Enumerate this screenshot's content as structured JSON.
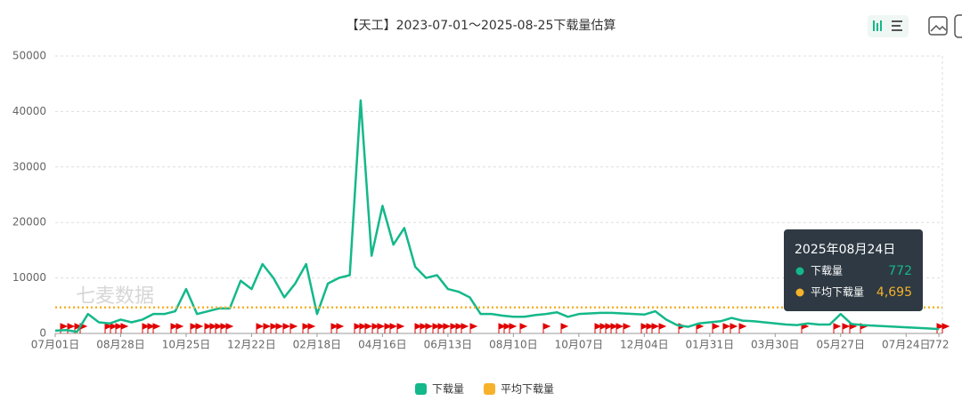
{
  "chart_data": {
    "type": "line",
    "title": "【天工】2023-07-01～2025-08-25下载量估算",
    "watermark": "七麦数据",
    "categories": [
      "07月01日",
      null,
      null,
      null,
      null,
      null,
      "08月28日",
      null,
      null,
      null,
      null,
      null,
      "10月25日",
      null,
      null,
      null,
      null,
      null,
      "12月22日",
      null,
      null,
      null,
      null,
      null,
      "02月18日",
      null,
      null,
      null,
      null,
      null,
      "04月16日",
      null,
      null,
      null,
      null,
      null,
      "06月13日",
      null,
      null,
      null,
      null,
      null,
      "08月10日",
      null,
      null,
      null,
      null,
      null,
      "10月07日",
      null,
      null,
      null,
      null,
      null,
      "12月04日",
      null,
      null,
      null,
      null,
      null,
      "01月31日",
      null,
      null,
      null,
      null,
      null,
      "03月30日",
      null,
      null,
      null,
      null,
      null,
      "05月27日",
      null,
      null,
      null,
      null,
      null,
      "07月24日",
      null,
      null,
      772
    ],
    "series": [
      {
        "name": "下载量",
        "color": "#14b88a",
        "values": [
          500,
          600,
          300,
          3500,
          2000,
          1800,
          2500,
          2000,
          2500,
          3500,
          3500,
          4000,
          8000,
          3500,
          4000,
          4500,
          4500,
          9500,
          8000,
          12500,
          10000,
          6500,
          9000,
          12500,
          3500,
          9000,
          10000,
          10500,
          42000,
          14000,
          23000,
          16000,
          19000,
          12000,
          10000,
          10500,
          8000,
          7500,
          6500,
          3500,
          3500,
          3200,
          3000,
          3000,
          3300,
          3500,
          3800,
          3000,
          3500,
          3600,
          3700,
          3700,
          3600,
          3500,
          3400,
          4000,
          2500,
          1500,
          1200,
          1800,
          2000,
          2200,
          2800,
          2300,
          2200,
          2000,
          1800,
          1600,
          1500,
          1800,
          1600,
          1600,
          3500,
          1700,
          1500,
          1400,
          1300,
          1200,
          1100,
          1000,
          900,
          772
        ]
      },
      {
        "name": "平均下载量",
        "color": "#f5b22a",
        "value": 4695
      }
    ],
    "ylim": [
      0,
      50000
    ],
    "yticks": [
      0,
      10000,
      20000,
      30000,
      40000,
      50000
    ],
    "grid": true,
    "legend": "bottom",
    "tooltip": {
      "title": "2025年08月24日",
      "rows": [
        {
          "value": 772
        },
        {
          "value": 4695,
          "value_label": "4,695"
        }
      ]
    }
  }
}
